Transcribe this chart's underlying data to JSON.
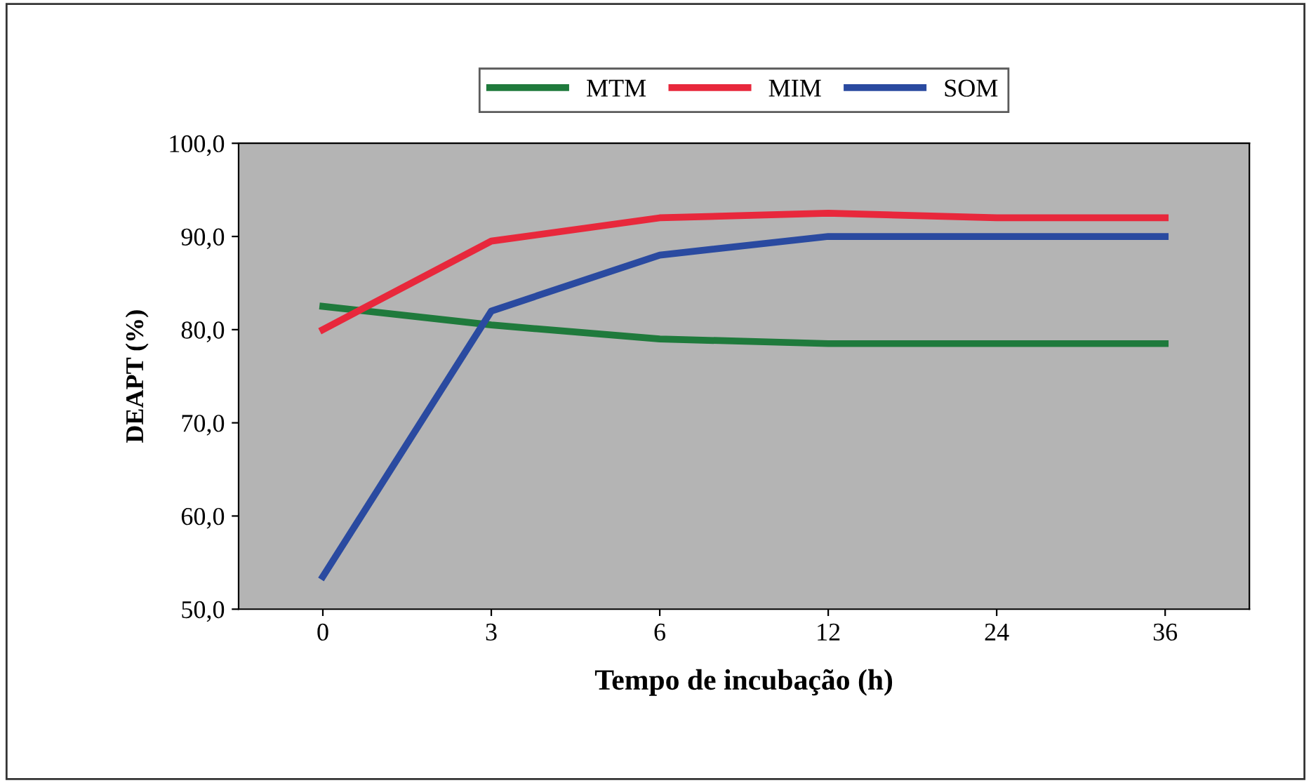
{
  "chart_data": {
    "type": "line",
    "xlabel": "Tempo de incubação (h)",
    "ylabel": "DEAPT (%)",
    "categories": [
      "0",
      "3",
      "6",
      "12",
      "24",
      "36"
    ],
    "series": [
      {
        "name": "MTM",
        "color": "#1f7a3c",
        "values": [
          82.5,
          80.5,
          79.0,
          78.5,
          78.5,
          78.5
        ]
      },
      {
        "name": "MIM",
        "color": "#e8283c",
        "values": [
          80.0,
          89.5,
          92.0,
          92.5,
          92.0,
          92.0
        ]
      },
      {
        "name": "SOM",
        "color": "#2a4aa0",
        "values": [
          53.5,
          82.0,
          88.0,
          90.0,
          90.0,
          90.0
        ]
      }
    ],
    "ylim": [
      50,
      100
    ],
    "yticks": [
      {
        "value": 50,
        "label": "50,0"
      },
      {
        "value": 60,
        "label": "60,0"
      },
      {
        "value": 70,
        "label": "70,0"
      },
      {
        "value": 80,
        "label": "80,0"
      },
      {
        "value": 90,
        "label": "90,0"
      },
      {
        "value": 100,
        "label": "100,0"
      }
    ],
    "legend": "top",
    "marker": "none",
    "line_style": "solid"
  }
}
